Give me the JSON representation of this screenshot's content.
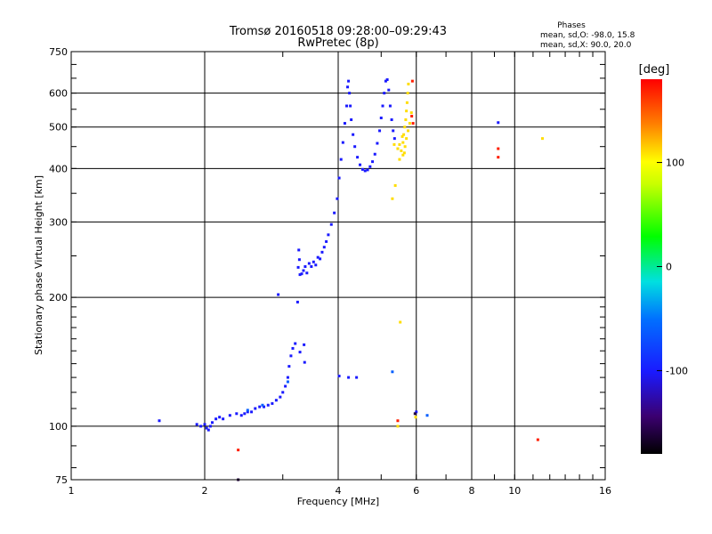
{
  "header": {
    "title_line1": "Tromsø 20160518 09:28:00–09:29:43",
    "title_line2": "RwPretec (8p)",
    "phase_title": "Phases",
    "phase_line1": "mean, sd,O: -98.0, 15.8",
    "phase_line2": "mean, sd,X:  90.0, 20.0"
  },
  "chart_data": {
    "type": "scatter",
    "title": "Tromsø 20160518 09:28:00–09:29:43",
    "subtitle": "RwPretec (8p)",
    "xlabel": "Frequency [MHz]",
    "ylabel": "Stationary phase Virtual Height [km]",
    "x_scale": "log",
    "y_scale": "log",
    "xlim": [
      1,
      16
    ],
    "ylim": [
      75,
      750
    ],
    "x_ticks": [
      1,
      2,
      4,
      6,
      8,
      10,
      16
    ],
    "x_tick_labels": [
      "1",
      "2",
      "4",
      "6",
      "8",
      "10",
      "16"
    ],
    "y_ticks": [
      75,
      100,
      200,
      300,
      400,
      500,
      600,
      750
    ],
    "y_tick_labels": [
      "75",
      "100",
      "200",
      "300",
      "400",
      "500",
      "600",
      "750"
    ],
    "grid": true,
    "colorbar": {
      "label": "[deg]",
      "min": -180,
      "max": 180,
      "ticks": [
        100,
        0,
        -100
      ],
      "tick_labels": [
        "100",
        "0",
        "-100"
      ]
    },
    "series": [
      {
        "color_value": -100,
        "points": [
          [
            1.58,
            103
          ],
          [
            1.92,
            101
          ],
          [
            1.96,
            100
          ],
          [
            2.0,
            101
          ],
          [
            2.02,
            99
          ],
          [
            2.04,
            98
          ],
          [
            2.06,
            100
          ],
          [
            2.08,
            102
          ],
          [
            2.12,
            104
          ],
          [
            2.16,
            105
          ],
          [
            2.2,
            104
          ],
          [
            2.28,
            106
          ],
          [
            2.36,
            107
          ],
          [
            2.42,
            106
          ],
          [
            2.46,
            107
          ],
          [
            2.5,
            108
          ],
          [
            2.55,
            108
          ],
          [
            2.6,
            110
          ],
          [
            2.66,
            111
          ],
          [
            2.72,
            111
          ],
          [
            2.78,
            112
          ],
          [
            2.84,
            113
          ],
          [
            2.9,
            115
          ],
          [
            2.96,
            117
          ],
          [
            3.0,
            120
          ],
          [
            3.04,
            124
          ],
          [
            3.08,
            130
          ],
          [
            3.1,
            138
          ],
          [
            3.13,
            146
          ],
          [
            3.16,
            152
          ],
          [
            3.2,
            156
          ],
          [
            2.93,
            203
          ],
          [
            3.28,
            149
          ],
          [
            3.36,
            141
          ],
          [
            3.24,
            195
          ],
          [
            3.25,
            235
          ],
          [
            3.26,
            258
          ],
          [
            3.27,
            245
          ],
          [
            3.28,
            226
          ],
          [
            3.31,
            227
          ],
          [
            3.34,
            231
          ],
          [
            3.37,
            236
          ],
          [
            3.4,
            228
          ],
          [
            3.44,
            240
          ],
          [
            3.48,
            236
          ],
          [
            3.52,
            242
          ],
          [
            3.56,
            238
          ],
          [
            3.6,
            248
          ],
          [
            3.64,
            246
          ],
          [
            3.68,
            255
          ],
          [
            3.72,
            262
          ],
          [
            3.76,
            270
          ],
          [
            3.8,
            280
          ],
          [
            3.86,
            296
          ],
          [
            3.92,
            315
          ],
          [
            3.98,
            340
          ],
          [
            4.02,
            380
          ],
          [
            4.06,
            420
          ],
          [
            4.1,
            460
          ],
          [
            4.14,
            510
          ],
          [
            4.18,
            560
          ],
          [
            4.2,
            620
          ],
          [
            4.22,
            640
          ],
          [
            4.24,
            600
          ],
          [
            4.26,
            560
          ],
          [
            4.28,
            520
          ],
          [
            4.32,
            480
          ],
          [
            4.36,
            450
          ],
          [
            4.42,
            425
          ],
          [
            4.48,
            408
          ],
          [
            4.54,
            398
          ],
          [
            4.6,
            395
          ],
          [
            4.66,
            397
          ],
          [
            4.72,
            404
          ],
          [
            4.78,
            415
          ],
          [
            4.84,
            432
          ],
          [
            4.9,
            458
          ],
          [
            4.96,
            490
          ],
          [
            5.0,
            525
          ],
          [
            5.04,
            560
          ],
          [
            5.08,
            600
          ],
          [
            5.12,
            640
          ],
          [
            5.16,
            645
          ],
          [
            5.2,
            610
          ],
          [
            5.24,
            560
          ],
          [
            5.28,
            520
          ],
          [
            5.32,
            490
          ],
          [
            5.36,
            470
          ],
          [
            4.02,
            131
          ],
          [
            4.22,
            130
          ],
          [
            4.4,
            130
          ],
          [
            3.35,
            155
          ],
          [
            9.18,
            512
          ],
          [
            6.0,
            108
          ]
        ]
      },
      {
        "color_value": -60,
        "points": [
          [
            3.08,
            127
          ],
          [
            2.7,
            112
          ],
          [
            2.5,
            109
          ],
          [
            5.3,
            134
          ],
          [
            6.35,
            106
          ]
        ]
      },
      {
        "color_value": 110,
        "points": [
          [
            5.5,
            420
          ],
          [
            5.55,
            440
          ],
          [
            5.6,
            460
          ],
          [
            5.62,
            480
          ],
          [
            5.65,
            500
          ],
          [
            5.68,
            520
          ],
          [
            5.7,
            545
          ],
          [
            5.72,
            570
          ],
          [
            5.74,
            600
          ],
          [
            5.76,
            630
          ],
          [
            5.6,
            430
          ],
          [
            5.66,
            450
          ],
          [
            5.7,
            470
          ],
          [
            5.75,
            490
          ],
          [
            5.8,
            510
          ],
          [
            5.85,
            540
          ],
          [
            5.45,
            445
          ],
          [
            5.5,
            455
          ],
          [
            5.58,
            475
          ],
          [
            5.64,
            435
          ],
          [
            5.35,
            455
          ],
          [
            5.3,
            340
          ],
          [
            5.38,
            365
          ],
          [
            5.52,
            175
          ],
          [
            11.55,
            470
          ],
          [
            5.45,
            100
          ],
          [
            5.98,
            105
          ]
        ]
      },
      {
        "color_value": 170,
        "points": [
          [
            5.88,
            640
          ],
          [
            5.86,
            530
          ],
          [
            5.9,
            510
          ],
          [
            9.18,
            445
          ],
          [
            9.18,
            425
          ],
          [
            11.28,
            93
          ],
          [
            5.45,
            103
          ],
          [
            2.38,
            88
          ]
        ]
      },
      {
        "color_value": -160,
        "points": [
          [
            5.96,
            107
          ],
          [
            2.38,
            75
          ]
        ]
      }
    ]
  }
}
